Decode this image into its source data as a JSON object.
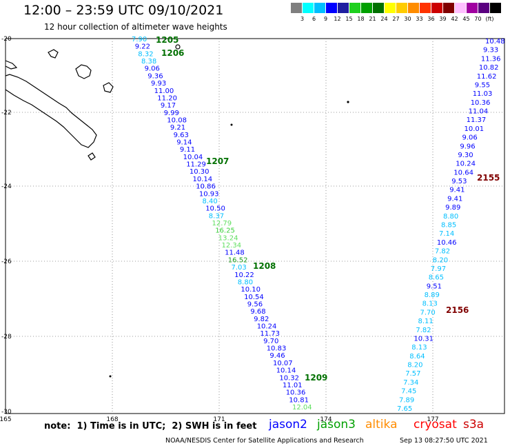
{
  "title": "12:00 – 23:59 UTC 09/10/2021",
  "subtitle": "12 hour collection of altimeter wave heights",
  "color_scale": {
    "colors": [
      "#7f7f7f",
      "#00ffff",
      "#00bfff",
      "#0000ff",
      "#1f1fa0",
      "#1fd01f",
      "#00a000",
      "#007000",
      "#ffff00",
      "#ffcc00",
      "#ff8c00",
      "#ff3300",
      "#cc0000",
      "#800000",
      "#ffbfff",
      "#a000a0",
      "#5a0080",
      "#000000"
    ],
    "labels": [
      "3",
      "6",
      "9",
      "12",
      "15",
      "18",
      "21",
      "24",
      "27",
      "30",
      "33",
      "36",
      "39",
      "42",
      "45",
      "70",
      "(ft)"
    ]
  },
  "map": {
    "lat_labels": [
      "-20",
      "-22",
      "-24",
      "-26",
      "-28",
      "-30"
    ],
    "lon_labels": [
      "165",
      "168",
      "171",
      "174",
      "177"
    ],
    "land_color": "#000000",
    "grid_style": "dotted"
  },
  "tracks": [
    {
      "id": "1205",
      "label_color": "#007000"
    },
    {
      "id": "1206",
      "label_color": "#007000"
    },
    {
      "id": "1207",
      "label_color": "#007000"
    },
    {
      "id": "1208",
      "label_color": "#007000"
    },
    {
      "id": "1209",
      "label_color": "#007000"
    },
    {
      "id": "2155",
      "label_color": "#800000"
    },
    {
      "id": "2156",
      "label_color": "#800000"
    }
  ],
  "track_a_values": [
    "7.90",
    "9.22",
    "8.32",
    "8.38",
    "9.06",
    "9.36",
    "9.93",
    "11.00",
    "11.20",
    "9.17",
    "9.99",
    "10.08",
    "9.21",
    "9.63",
    "9.14",
    "9.11",
    "10.04",
    "11.29",
    "10.30",
    "10.14",
    "10.86",
    "10.93",
    "8.40",
    "10.50",
    "8.37",
    "12.79",
    "16.25",
    "13.24",
    "12.34",
    "11.48",
    "16.52",
    "7.03",
    "10.22",
    "8.80",
    "10.10",
    "10.54",
    "9.56",
    "9.68",
    "9.82",
    "10.24",
    "11.73",
    "9.70",
    "10.83",
    "9.46",
    "10.07",
    "10.14",
    "10.32",
    "11.01",
    "10.36",
    "10.81",
    "12.04"
  ],
  "track_a_colors": [
    "#00bfff",
    "#0000ff",
    "#00bfff",
    "#00bfff",
    "#0000ff",
    "#0000ff",
    "#0000ff",
    "#0000ff",
    "#0000ff",
    "#0000ff",
    "#0000ff",
    "#0000ff",
    "#0000ff",
    "#0000ff",
    "#0000ff",
    "#0000ff",
    "#0000ff",
    "#0000ff",
    "#0000ff",
    "#0000ff",
    "#0000ff",
    "#0000ff",
    "#00bfff",
    "#0000ff",
    "#00bfff",
    "#5fdf5f",
    "#3ad03a",
    "#5fdf5f",
    "#5fdf5f",
    "#0000ff",
    "#1fa01f",
    "#00bfff",
    "#0000ff",
    "#00bfff",
    "#0000ff",
    "#0000ff",
    "#0000ff",
    "#0000ff",
    "#0000ff",
    "#0000ff",
    "#0000ff",
    "#0000ff",
    "#0000ff",
    "#0000ff",
    "#0000ff",
    "#0000ff",
    "#0000ff",
    "#0000ff",
    "#0000ff",
    "#0000ff",
    "#5fdf5f"
  ],
  "track_b_values": [
    "10.48",
    "9.33",
    "11.36",
    "10.82",
    "11.62",
    "9.55",
    "11.03",
    "10.36",
    "11.04",
    "11.37",
    "10.01",
    "9.06",
    "9.96",
    "9.30",
    "10.24",
    "10.64",
    "9.53",
    "9.41",
    "9.41",
    "9.89",
    "8.80",
    "8.85",
    "7.14",
    "10.46",
    "7.82",
    "8.20",
    "7.97",
    "8.65",
    "9.51",
    "8.89",
    "8.13",
    "7.70",
    "8.11",
    "7.82",
    "10.31",
    "8.13",
    "8.64",
    "8.20",
    "7.57",
    "7.34",
    "7.45",
    "7.89",
    "7.65"
  ],
  "track_b_colors": [
    "#0000ff",
    "#0000ff",
    "#0000ff",
    "#0000ff",
    "#0000ff",
    "#0000ff",
    "#0000ff",
    "#0000ff",
    "#0000ff",
    "#0000ff",
    "#0000ff",
    "#0000ff",
    "#0000ff",
    "#0000ff",
    "#0000ff",
    "#0000ff",
    "#0000ff",
    "#0000ff",
    "#0000ff",
    "#0000ff",
    "#00bfff",
    "#00bfff",
    "#00bfff",
    "#0000ff",
    "#00bfff",
    "#00bfff",
    "#00bfff",
    "#00bfff",
    "#0000ff",
    "#00bfff",
    "#00bfff",
    "#00bfff",
    "#00bfff",
    "#00bfff",
    "#0000ff",
    "#00bfff",
    "#00bfff",
    "#00bfff",
    "#00bfff",
    "#00bfff",
    "#00bfff",
    "#00bfff",
    "#00bfff"
  ],
  "note": "note:  1) Time is in UTC;  2) SWH is in feet",
  "legend": [
    {
      "name": "jason2",
      "color": "#0000ff"
    },
    {
      "name": "jason3",
      "color": "#00a000"
    },
    {
      "name": "altika",
      "color": "#ff8c00"
    },
    {
      "name": "cryosat",
      "color": "#ff0000"
    },
    {
      "name": "s3a",
      "color": "#cc0000"
    }
  ],
  "credit": "NOAA/NESDIS Center for Satellite Applications and Research",
  "timestamp": "Sep 13 08:27:50 UTC 2021"
}
